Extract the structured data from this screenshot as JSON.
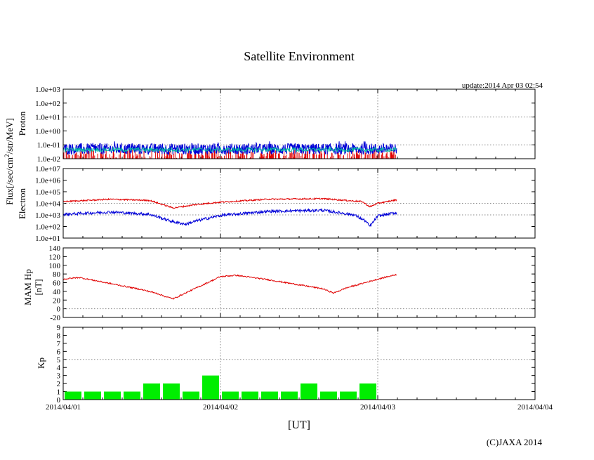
{
  "chart_data": {
    "type": "multi-panel",
    "title": "Satellite Environment",
    "update": "update:2014 Apr 03 02:54",
    "copyright": "(C)JAXA 2014",
    "xlabel": "[UT]",
    "x_ticks": [
      "2014/04/01",
      "2014/04/02",
      "2014/04/03",
      "2014/04/04"
    ],
    "x_range_days": [
      0,
      3
    ],
    "data_end_day": 2.12,
    "shared_ylabel": "Flux[/sec/cm",
    "shared_ylabel_sup": "2",
    "shared_ylabel_tail": "/str/MeV]",
    "colors": {
      "red": "#e00000",
      "blue": "#0000d8",
      "green": "#00ee00",
      "cyan": "#00c0c0",
      "grid": "#888888"
    },
    "panels": {
      "proton": {
        "ylabel": "Proton",
        "scale": "log",
        "ylim_exp": [
          -2,
          3
        ],
        "y_ticks": [
          "1.0e+03",
          "1.0e+02",
          "1.0e+01",
          "1.0e+00",
          "1.0e-01",
          "1.0e-02"
        ],
        "series": [
          {
            "name": "blue",
            "band_log": [
              -1.7,
              -0.9
            ],
            "color": "#0000d8"
          },
          {
            "name": "green",
            "center_log": -1.35,
            "color": "#00c0a0"
          },
          {
            "name": "red",
            "spikes": true,
            "color": "#e00000"
          }
        ]
      },
      "electron": {
        "ylabel": "Electron",
        "scale": "log",
        "ylim_exp": [
          1,
          7
        ],
        "y_ticks": [
          "1.0e+07",
          "1.0e+06",
          "1.0e+05",
          "1.0e+04",
          "1.0e+03",
          "1.0e+02",
          "1.0e+01"
        ],
        "series": [
          {
            "name": "red",
            "x": [
              0,
              0.3,
              0.55,
              0.7,
              0.85,
              1.0,
              1.3,
              1.65,
              1.9,
              1.95,
              2.0,
              2.12
            ],
            "y_log": [
              4.15,
              4.35,
              4.25,
              3.6,
              3.9,
              4.1,
              4.35,
              4.4,
              4.15,
              3.7,
              4.0,
              4.3
            ]
          },
          {
            "name": "blue",
            "x": [
              0,
              0.3,
              0.55,
              0.7,
              0.78,
              0.85,
              1.0,
              1.3,
              1.65,
              1.85,
              1.92,
              1.95,
              2.0,
              2.12
            ],
            "y_log": [
              3.05,
              3.25,
              3.05,
              2.4,
              2.2,
              2.5,
              2.95,
              3.3,
              3.4,
              3.0,
              2.5,
              2.0,
              2.9,
              3.2
            ]
          }
        ]
      },
      "hp": {
        "ylabel_1": "MAM Hp",
        "ylabel_2": "[nT]",
        "scale": "linear",
        "ylim": [
          -20,
          140
        ],
        "y_ticks": [
          "140",
          "120",
          "100",
          "80",
          "60",
          "40",
          "20",
          "0",
          "-20"
        ],
        "series": [
          {
            "name": "red",
            "x": [
              0,
              0.1,
              0.3,
              0.5,
              0.6,
              0.65,
              0.7,
              0.8,
              1.0,
              1.1,
              1.3,
              1.5,
              1.65,
              1.72,
              1.8,
              2.0,
              2.12
            ],
            "y": [
              68,
              72,
              58,
              44,
              35,
              28,
              23,
              40,
              74,
              77,
              67,
              55,
              46,
              36,
              48,
              68,
              79
            ]
          }
        ]
      },
      "kp": {
        "ylabel": "Kp",
        "scale": "linear",
        "ylim": [
          0,
          9
        ],
        "y_ticks": [
          "9",
          "8",
          "7",
          "6",
          "5",
          "4",
          "3",
          "2",
          "1",
          "0"
        ],
        "values": [
          1,
          1,
          1,
          1,
          2,
          2,
          1,
          3,
          1,
          1,
          1,
          1,
          2,
          1,
          1,
          2
        ],
        "interval_days": 0.125,
        "color": "#00ee00"
      }
    }
  }
}
